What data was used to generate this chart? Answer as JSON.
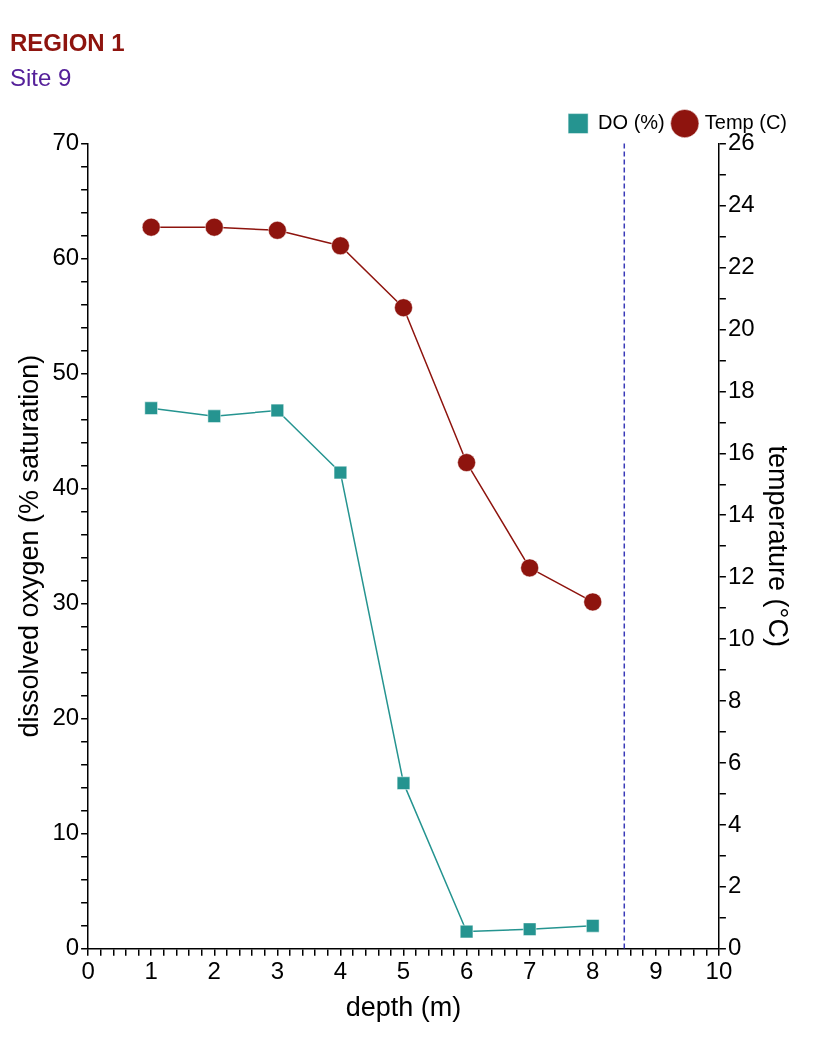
{
  "chart_data": {
    "type": "line",
    "title": "REGION 1",
    "subtitle": "Site 9",
    "xlabel": "depth (m)",
    "ylabel": "dissolved oxygen (% saturation)",
    "y2label": "temperature (°C)",
    "x": [
      1,
      2,
      3,
      4,
      5,
      6,
      7,
      8
    ],
    "series": [
      {
        "name": "DO (%)",
        "color": "#259490",
        "marker": "square",
        "values": [
          47.0,
          46.3,
          46.8,
          41.4,
          14.4,
          1.5,
          1.7,
          2.0
        ]
      },
      {
        "name": "Temp (C)",
        "color": "#8e140e",
        "marker": "circle",
        "axis": "y2",
        "values": [
          23.3,
          23.3,
          23.2,
          22.7,
          20.7,
          15.7,
          12.3,
          11.2
        ]
      }
    ],
    "xlim": [
      0,
      10
    ],
    "xticks": [
      0,
      {
        "value": 0.2,
        "label": null
      },
      {
        "value": 0.4,
        "label": null
      },
      {
        "value": 0.6,
        "label": null
      },
      {
        "value": 0.8,
        "label": null
      },
      1,
      {
        "value": 1.2,
        "label": null
      },
      {
        "value": 1.4,
        "label": null
      },
      {
        "value": 1.6,
        "label": null
      },
      {
        "value": 1.8,
        "label": null
      },
      2,
      {
        "value": 2.2,
        "label": null
      },
      {
        "value": 2.4,
        "label": null
      },
      {
        "value": 2.6,
        "label": null
      },
      {
        "value": 2.8,
        "label": null
      },
      3,
      {
        "value": 3.2,
        "label": null
      },
      {
        "value": 3.4,
        "label": null
      },
      {
        "value": 3.6,
        "label": null
      },
      {
        "value": 3.8,
        "label": null
      },
      4,
      {
        "value": 4.2,
        "label": null
      },
      {
        "value": 4.4,
        "label": null
      },
      {
        "value": 4.6,
        "label": null
      },
      {
        "value": 4.8,
        "label": null
      },
      5,
      {
        "value": 5.2,
        "label": null
      },
      {
        "value": 5.4,
        "label": null
      },
      {
        "value": 5.6,
        "label": null
      },
      {
        "value": 5.8,
        "label": null
      },
      6,
      {
        "value": 6.2,
        "label": null
      },
      {
        "value": 6.4,
        "label": null
      },
      {
        "value": 6.6,
        "label": null
      },
      {
        "value": 6.8,
        "label": null
      },
      7,
      {
        "value": 7.2,
        "label": null
      },
      {
        "value": 7.4,
        "label": null
      },
      {
        "value": 7.6,
        "label": null
      },
      {
        "value": 7.8,
        "label": null
      },
      8,
      {
        "value": 8.2,
        "label": null
      },
      {
        "value": 8.4,
        "label": null
      },
      {
        "value": 8.6,
        "label": null
      },
      {
        "value": 8.8,
        "label": null
      },
      9,
      {
        "value": 9.2,
        "label": null
      },
      {
        "value": 9.4,
        "label": null
      },
      {
        "value": 9.6,
        "label": null
      },
      {
        "value": 9.8,
        "label": null
      },
      10
    ],
    "ylim": [
      0,
      70
    ],
    "yticks": [
      0,
      {
        "value": 2,
        "label": null
      },
      {
        "value": 4,
        "label": null
      },
      {
        "value": 6,
        "label": null
      },
      {
        "value": 8,
        "label": null
      },
      10,
      {
        "value": 12,
        "label": null
      },
      {
        "value": 14,
        "label": null
      },
      {
        "value": 16,
        "label": null
      },
      {
        "value": 18,
        "label": null
      },
      20,
      {
        "value": 22,
        "label": null
      },
      {
        "value": 24,
        "label": null
      },
      {
        "value": 26,
        "label": null
      },
      {
        "value": 28,
        "label": null
      },
      30,
      {
        "value": 32,
        "label": null
      },
      {
        "value": 34,
        "label": null
      },
      {
        "value": 36,
        "label": null
      },
      {
        "value": 38,
        "label": null
      },
      40,
      {
        "value": 42,
        "label": null
      },
      {
        "value": 44,
        "label": null
      },
      {
        "value": 46,
        "label": null
      },
      {
        "value": 48,
        "label": null
      },
      50,
      {
        "value": 52,
        "label": null
      },
      {
        "value": 54,
        "label": null
      },
      {
        "value": 56,
        "label": null
      },
      {
        "value": 58,
        "label": null
      },
      60,
      {
        "value": 62,
        "label": null
      },
      {
        "value": 64,
        "label": null
      },
      {
        "value": 66,
        "label": null
      },
      {
        "value": 68,
        "label": null
      },
      70
    ],
    "y2lim": [
      0,
      26
    ],
    "y2ticks": [
      0,
      {
        "value": 1,
        "label": null
      },
      2,
      {
        "value": 3,
        "label": null
      },
      4,
      {
        "value": 5,
        "label": null
      },
      6,
      {
        "value": 7,
        "label": null
      },
      8,
      {
        "value": 9,
        "label": null
      },
      10,
      {
        "value": 11,
        "label": null
      },
      12,
      {
        "value": 13,
        "label": null
      },
      14,
      {
        "value": 15,
        "label": null
      },
      16,
      {
        "value": 17,
        "label": null
      },
      18,
      {
        "value": 19,
        "label": null
      },
      20,
      {
        "value": 21,
        "label": null
      },
      22,
      {
        "value": 23,
        "label": null
      },
      24,
      {
        "value": 25,
        "label": null
      },
      26
    ],
    "ref_lines": [
      {
        "axis": "x",
        "value": 8.5,
        "color": "#3a3ab8",
        "line_style": "dashed"
      }
    ],
    "grid": false,
    "legend": "top right"
  }
}
